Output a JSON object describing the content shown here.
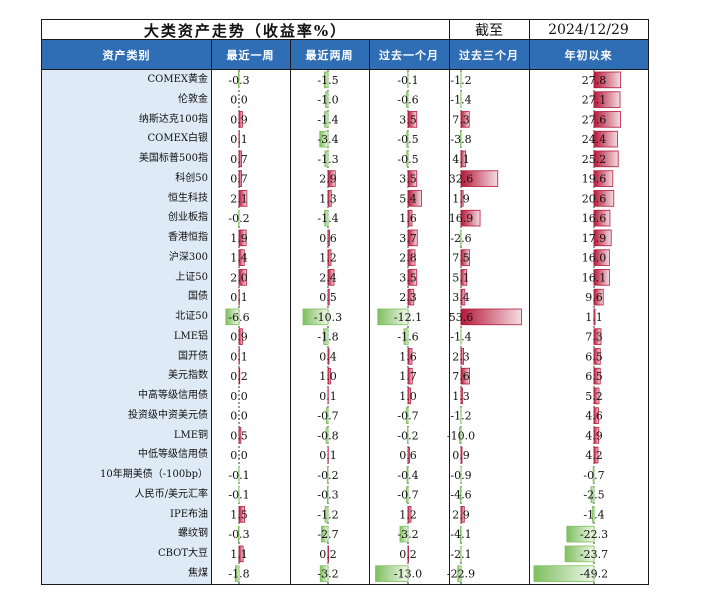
{
  "header": {
    "title": "大类资产走势（收益率%）",
    "as_of_label": "截至",
    "as_of_date": "2024/12/29"
  },
  "columns": [
    "资产类别",
    "最近一周",
    "最近两周",
    "过去一个月",
    "过去三个月",
    "年初以来"
  ],
  "colors": {
    "header_bg": "#2f6db5",
    "name_col_bg": "#deeaf6",
    "positive_bar": "#b5193a",
    "negative_bar": "#7fbf5f"
  },
  "chart_data": {
    "type": "table",
    "title": "大类资产走势（收益率%）",
    "categories": [
      "COMEX黄金",
      "伦敦金",
      "纳斯达克100指",
      "COMEX白银",
      "美国标普500指",
      "科创50",
      "恒生科技",
      "创业板指",
      "香港恒指",
      "沪深300",
      "上证50",
      "国债",
      "北证50",
      "LME铝",
      "国开债",
      "美元指数",
      "中高等级信用债",
      "投资级中资美元债",
      "LME铜",
      "中低等级信用债",
      "10年期美债（-100bp）",
      "人民币/美元汇率",
      "IPE布油",
      "螺纹钢",
      "CBOT大豆",
      "焦煤"
    ],
    "series": [
      {
        "name": "最近一周",
        "values": [
          -0.3,
          0.0,
          0.9,
          0.1,
          0.7,
          0.7,
          2.1,
          -0.2,
          1.9,
          1.4,
          2.0,
          0.1,
          -6.6,
          0.9,
          0.1,
          0.2,
          0.0,
          0.0,
          0.5,
          0.0,
          -0.1,
          -0.1,
          1.5,
          -0.3,
          1.1,
          -1.8
        ]
      },
      {
        "name": "最近两周",
        "values": [
          -1.5,
          -1.0,
          -1.4,
          -3.4,
          -1.3,
          2.9,
          1.3,
          -1.4,
          0.6,
          1.2,
          2.4,
          0.5,
          -10.3,
          -1.8,
          0.4,
          1.0,
          0.1,
          -0.7,
          -0.8,
          0.1,
          -0.2,
          -0.3,
          -1.2,
          -2.7,
          0.2,
          -3.2
        ]
      },
      {
        "name": "过去一个月",
        "values": [
          -0.1,
          -0.6,
          3.5,
          -0.5,
          -0.5,
          3.5,
          5.4,
          1.6,
          3.7,
          2.8,
          3.5,
          2.3,
          -12.1,
          -1.6,
          1.6,
          1.7,
          1.0,
          -0.7,
          -0.2,
          0.6,
          -0.4,
          -0.7,
          1.2,
          -3.2,
          0.2,
          -13.0
        ]
      },
      {
        "name": "过去三个月",
        "values": [
          -1.2,
          -1.4,
          7.3,
          -3.8,
          4.1,
          32.6,
          1.9,
          16.9,
          -2.6,
          7.5,
          5.1,
          3.4,
          53.6,
          -1.4,
          2.3,
          7.6,
          1.3,
          -1.2,
          -10.0,
          0.9,
          -0.9,
          -4.6,
          2.9,
          -4.1,
          -2.1,
          -22.9
        ]
      },
      {
        "name": "年初以来",
        "values": [
          27.8,
          27.1,
          27.6,
          24.4,
          25.2,
          19.6,
          20.6,
          16.6,
          17.9,
          16.0,
          16.1,
          9.6,
          1.1,
          7.3,
          6.5,
          6.5,
          5.2,
          4.6,
          4.9,
          4.2,
          -0.7,
          -2.5,
          -1.4,
          -22.3,
          -23.7,
          -49.2
        ]
      }
    ]
  }
}
